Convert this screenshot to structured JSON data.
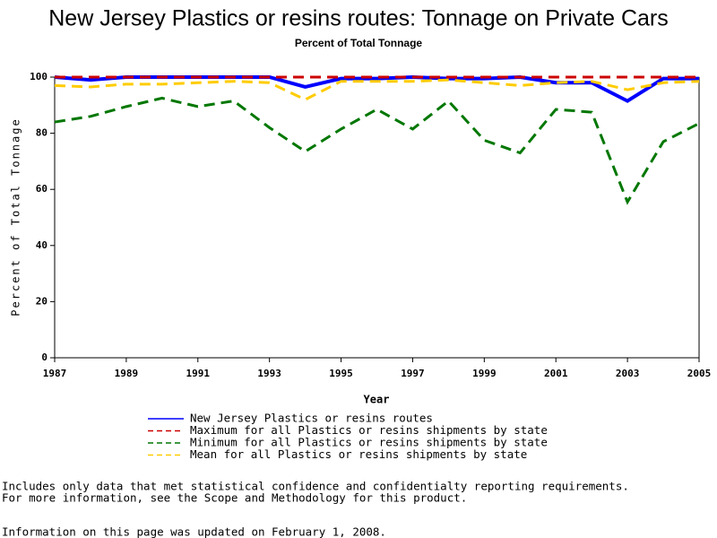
{
  "chart_data": {
    "type": "line",
    "title": "New Jersey Plastics or resins routes: Tonnage on Private Cars",
    "subtitle": "Percent of Total Tonnage",
    "x_label": "Year",
    "y_label": "Percent of Total Tonnage",
    "x": [
      1987,
      1988,
      1989,
      1990,
      1991,
      1992,
      1993,
      1994,
      1995,
      1996,
      1997,
      1998,
      1999,
      2000,
      2001,
      2002,
      2003,
      2004,
      2005
    ],
    "series": [
      {
        "name": "New Jersey Plastics or resins routes",
        "color": "#0000ff",
        "line_style": "solid",
        "values": [
          100,
          99,
          100,
          100,
          100,
          100,
          100,
          96.5,
          99.5,
          99.5,
          100,
          99.5,
          99.5,
          100,
          98,
          98,
          91.5,
          99.5,
          99.5
        ]
      },
      {
        "name": "Maximum for all Plastics or resins shipments by state",
        "color": "#cc0000",
        "line_style": "dashed",
        "values": [
          100,
          100,
          100,
          100,
          100,
          100,
          100,
          100,
          100,
          100,
          100,
          100,
          100,
          100,
          100,
          100,
          100,
          100,
          100
        ]
      },
      {
        "name": "Minimum for all Plastics or resins shipments by state",
        "color": "#007700",
        "line_style": "dashed",
        "values": [
          84,
          86,
          89.5,
          92.5,
          89.5,
          91.5,
          82,
          73.5,
          81.5,
          88.5,
          81.5,
          91.5,
          77.5,
          73,
          88.5,
          87.5,
          55.5,
          77,
          83.5
        ]
      },
      {
        "name": "Mean for all Plastics or resins shipments by state",
        "color": "#ffcc00",
        "line_style": "dashed",
        "values": [
          97,
          96.5,
          97.5,
          97.5,
          98,
          98.5,
          98,
          92,
          98.5,
          98.5,
          98.5,
          99,
          98,
          97,
          98,
          98.5,
          95.5,
          98,
          98.5
        ]
      }
    ],
    "xlim": [
      1987,
      2005
    ],
    "xticks": [
      1987,
      1989,
      1991,
      1993,
      1995,
      1997,
      1999,
      2001,
      2003,
      2005
    ],
    "ylim": [
      0,
      100
    ],
    "yticks": [
      0,
      20,
      40,
      60,
      80,
      100
    ],
    "grid": false
  },
  "footer": {
    "lines": [
      "Includes only data that met statistical confidence and confidentialty reporting requirements.",
      "For more information, see the Scope and Methodology for this product."
    ],
    "updated": "Information on this page was updated on February 1, 2008."
  }
}
